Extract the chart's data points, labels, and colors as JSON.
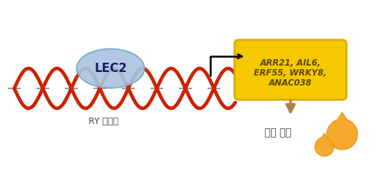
{
  "bg_color": "#ffffff",
  "lec2_label": "LEC2",
  "lec2_ellipse_color": "#aac4e0",
  "lec2_ellipse_edge": "#7aaac8",
  "dna_color_red": "#cc2200",
  "dna_stripe_color": "#cccccc",
  "dna_helix_fill": "#dddddd",
  "ry_label": "RY 모티프",
  "ry_label_color": "#444444",
  "box_color": "#f5c800",
  "box_edge_color": "#e0a800",
  "gene_text_line1": "ARR21, AIL6,",
  "gene_text_line2": "ERF55, WRKY8,",
  "gene_text_line3": "ANAC038",
  "gene_text_color": "#5a4a00",
  "fat_label": "식물 지방",
  "fat_label_color": "#444444",
  "arrow_color": "#111111",
  "down_arrow_color": "#b08040",
  "drop_color1": "#f5a623",
  "drop_color2": "#e09010",
  "figsize": [
    5.4,
    2.54
  ],
  "dpi": 100
}
